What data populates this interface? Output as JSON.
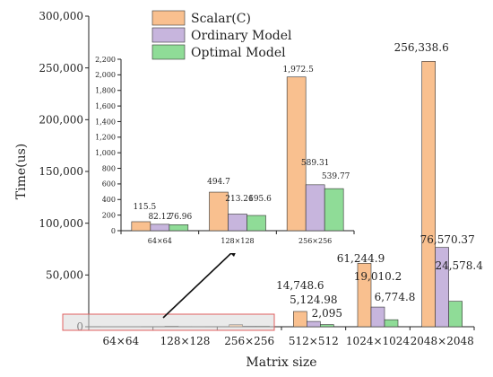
{
  "colors": {
    "scalar": "#f9c08f",
    "ordinary": "#c7b5dd",
    "optimal": "#8fdc97",
    "zoom_fill": "#d9d9d9",
    "zoom_stroke": "#e06060"
  },
  "chart_data": [
    {
      "type": "bar",
      "xlabel": "Matrix size",
      "ylabel": "Time(us)",
      "ylim": [
        0,
        300000
      ],
      "yticks": [
        "0",
        "50,000",
        "100,000",
        "150,000",
        "200,000",
        "250,000",
        "300,000"
      ],
      "categories": [
        "64×64",
        "128×128",
        "256×256",
        "512×512",
        "1024×1024",
        "2048×2048"
      ],
      "legend_position": "top-center",
      "series": [
        {
          "name": "Scalar(C)",
          "color_key": "scalar",
          "values": [
            115.5,
            494.7,
            1972.5,
            14748.6,
            61244.9,
            256338.6
          ]
        },
        {
          "name": "Ordinary Model",
          "color_key": "ordinary",
          "values": [
            82.12,
            213.26,
            589.31,
            5124.98,
            19010.2,
            76570.37
          ]
        },
        {
          "name": "Optimal Model",
          "color_key": "optimal",
          "values": [
            76.96,
            195.6,
            539.77,
            2095,
            6774.8,
            24578.4
          ]
        }
      ],
      "data_labels": [
        [
          "",
          "",
          "",
          "14,748.6",
          "61,244.9",
          "256,338.6"
        ],
        [
          "",
          "",
          "",
          "5,124.98",
          "19,010.2",
          "76,570.37"
        ],
        [
          "",
          "",
          "",
          "2,095",
          "6,774.8",
          "24,578.4"
        ]
      ]
    },
    {
      "type": "bar",
      "ylim": [
        0,
        2200
      ],
      "yticks": [
        "0",
        "200",
        "400",
        "600",
        "800",
        "1,000",
        "1,200",
        "1,400",
        "1,600",
        "1,800",
        "2,000",
        "2,200"
      ],
      "categories": [
        "64×64",
        "128×128",
        "256×256"
      ],
      "series": [
        {
          "name": "Scalar(C)",
          "color_key": "scalar",
          "values": [
            115.5,
            494.7,
            1972.5
          ]
        },
        {
          "name": "Ordinary Model",
          "color_key": "ordinary",
          "values": [
            82.12,
            213.26,
            589.31
          ]
        },
        {
          "name": "Optimal Model",
          "color_key": "optimal",
          "values": [
            76.96,
            195.6,
            539.77
          ]
        }
      ],
      "data_labels": [
        [
          "115.5",
          "494.7",
          "1,972.5"
        ],
        [
          "82.12",
          "213.26",
          "589.31"
        ],
        [
          "76.96",
          "195.6",
          "539.77"
        ]
      ]
    }
  ]
}
